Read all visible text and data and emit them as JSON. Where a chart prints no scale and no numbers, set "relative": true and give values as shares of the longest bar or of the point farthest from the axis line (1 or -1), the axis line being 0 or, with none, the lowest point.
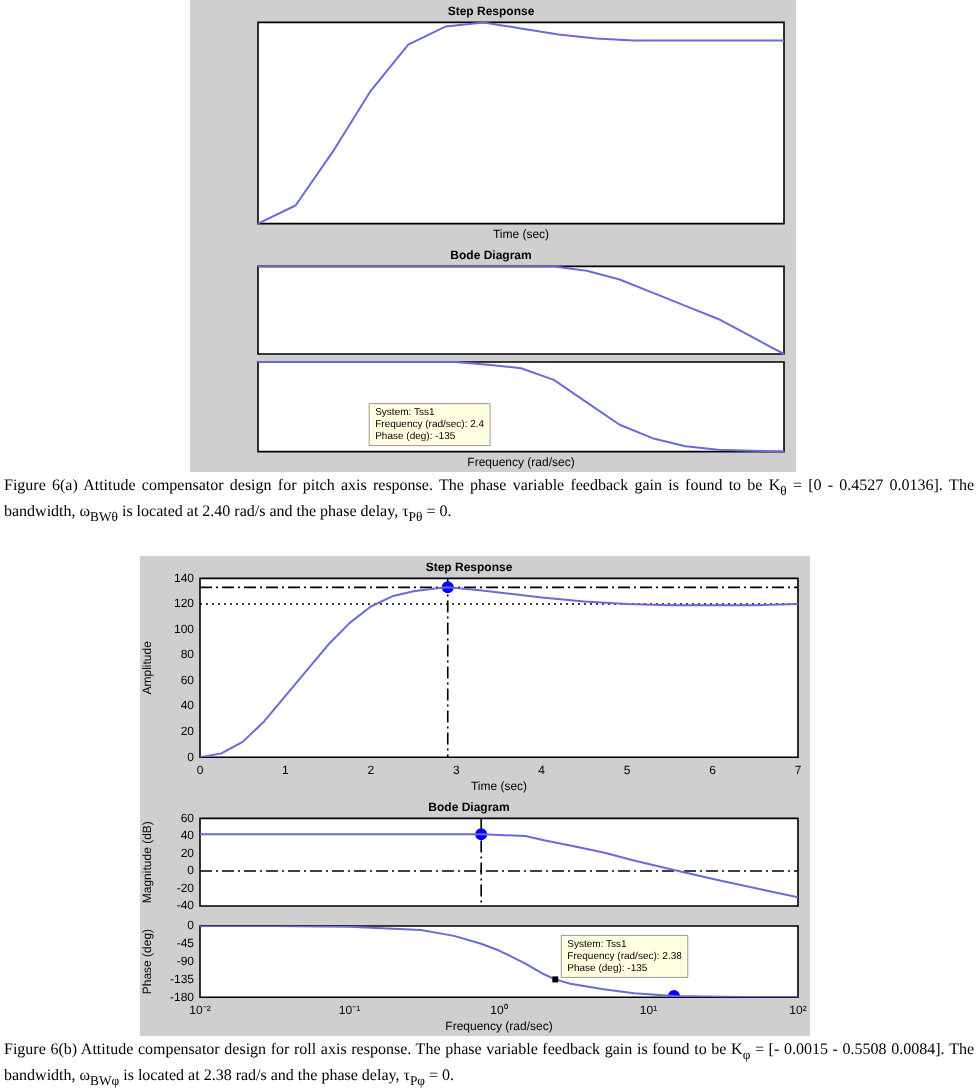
{
  "chart_data": [
    {
      "type": "line",
      "title": "Step Response",
      "xlabel": "Time (sec)",
      "relative": true,
      "tick_labels": false,
      "categories": [
        null,
        null,
        null,
        null,
        null,
        null,
        null,
        null,
        null,
        null,
        null,
        null,
        null,
        null,
        null
      ],
      "series": [
        {
          "color": "#6a6ad8",
          "values": [
            0,
            0.09,
            0.36,
            0.66,
            0.89,
            0.98,
            1,
            0.97,
            0.94,
            0.92,
            0.91,
            0.91,
            0.91,
            0.91,
            0.91
          ]
        }
      ]
    },
    {
      "type": "line",
      "title": "Bode Diagram",
      "relative": true,
      "tick_labels": false,
      "categories": [
        null,
        null,
        null,
        null,
        null,
        null,
        null,
        null,
        null,
        null,
        null,
        null,
        null,
        null,
        null,
        null,
        null
      ],
      "series": [
        {
          "color": "#6a6ad8",
          "values": [
            1,
            1,
            1,
            1,
            1,
            1,
            1,
            1,
            1,
            1,
            0.95,
            0.85,
            0.7,
            0.55,
            0.4,
            0.2,
            0
          ]
        }
      ]
    },
    {
      "type": "line",
      "xlabel": "Frequency (rad/sec)",
      "relative": true,
      "tick_labels": false,
      "categories": [
        null,
        null,
        null,
        null,
        null,
        null,
        null,
        null,
        null,
        null,
        null,
        null,
        null,
        null,
        null,
        null,
        null
      ],
      "series": [
        {
          "color": "#6a6ad8",
          "values": [
            1,
            1,
            1,
            1,
            1,
            1,
            1,
            0.97,
            0.93,
            0.8,
            0.55,
            0.3,
            0.15,
            0.06,
            0.02,
            0.01,
            0
          ]
        }
      ],
      "annotations": [
        "Figure 6(a) Attitude compensator design for pitch axis response. The phase variable feedback gain is found to be K$_{θ}$ = [0  - 0.4527  0.0136]. The bandwidth, ω$_{BWθ}$ is located at 2.40 rad/s and the phase delay, τ$_{Pθ}$ = 0.",
        "System: Tss1\nFrequency (rad/sec): 2.4\nPhase (deg): -135"
      ]
    },
    {
      "type": "line",
      "title": "Step Response",
      "xlabel": "Time (sec)",
      "ylabel": "Amplitude",
      "x": [
        0,
        0.25,
        0.5,
        0.75,
        1,
        1.25,
        1.5,
        1.75,
        2,
        2.25,
        2.5,
        2.75,
        2.9,
        3.25,
        3.5,
        4,
        4.5,
        5,
        5.5,
        6,
        6.5,
        7
      ],
      "xlim": [
        0,
        7
      ],
      "xticks": [
        0,
        1,
        2,
        3,
        4,
        5,
        6,
        7
      ],
      "ylim": [
        0,
        140
      ],
      "yticks": [
        0,
        20,
        40,
        60,
        80,
        100,
        120,
        140
      ],
      "series": [
        {
          "color": "#6a6ad8",
          "values": [
            0,
            3,
            12,
            28,
            48,
            68,
            88,
            105,
            118,
            126,
            130,
            132,
            133,
            131,
            129,
            125,
            122,
            120,
            119,
            119,
            119,
            120
          ]
        },
        {
          "type": "scatter",
          "color": "#0000ff",
          "x": [
            2.9
          ],
          "values": [
            133
          ]
        }
      ],
      "ref_lines": [
        {
          "axis": "y",
          "value": 133,
          "line_style": "dashed",
          "color": "#000000"
        },
        {
          "axis": "y",
          "value": 120,
          "line_style": "dotted",
          "color": "#000000"
        },
        {
          "axis": "x",
          "value": 2.9,
          "line_style": "dashed",
          "color": "#000000"
        }
      ]
    },
    {
      "type": "line",
      "title": "Bode Diagram",
      "ylabel": "Magnitude (dB)",
      "log": "x",
      "tick_labels": "y",
      "x": [
        0.01,
        0.03,
        0.1,
        0.3,
        0.5,
        0.76,
        1,
        1.5,
        2,
        3,
        5,
        8,
        14.8,
        30,
        60,
        100
      ],
      "xlim": [
        0.01,
        100
      ],
      "xticks": [
        {
          "value": 0.01,
          "label": null
        },
        {
          "value": 0.1,
          "label": null
        },
        {
          "value": 1,
          "label": null
        },
        {
          "value": 10,
          "label": null
        },
        {
          "value": 100,
          "label": null
        }
      ],
      "ylim": [
        -40,
        60
      ],
      "yticks": [
        -40,
        -20,
        0,
        20,
        40,
        60
      ],
      "series": [
        {
          "color": "#6a6ad8",
          "values": [
            42,
            42,
            42,
            42,
            42,
            42,
            41,
            40,
            35,
            29,
            21,
            12,
            1,
            -11,
            -22,
            -30
          ]
        },
        {
          "type": "scatter",
          "color": "#0000ff",
          "x": [
            0.76
          ],
          "values": [
            42
          ]
        }
      ],
      "ref_lines": [
        {
          "axis": "y",
          "value": 0,
          "line_style": "dashed",
          "color": "#000000"
        },
        {
          "axis": "x",
          "value": 0.76,
          "line_style": "dashed",
          "color": "#000000"
        }
      ]
    },
    {
      "type": "line",
      "xlabel": "Frequency (rad/sec)",
      "ylabel": "Phase (deg)",
      "log": "x",
      "xlim": [
        0.01,
        100
      ],
      "xticks": [
        {
          "value": 0.01,
          "label": "10⁻²"
        },
        {
          "value": 0.1,
          "label": "10⁻¹"
        },
        {
          "value": 1,
          "label": "10⁰"
        },
        {
          "value": 10,
          "label": "10¹"
        },
        {
          "value": 100,
          "label": "10²"
        }
      ],
      "ylim": [
        -180,
        0
      ],
      "yticks": [
        -180,
        -135,
        -90,
        -45,
        0
      ],
      "series": [
        {
          "color": "#6a6ad8",
          "x": [
            0.01,
            0.03,
            0.1,
            0.3,
            0.5,
            0.76,
            1,
            1.5,
            2,
            2.38,
            3,
            5,
            8,
            14.8,
            30,
            60,
            100
          ],
          "values": [
            0,
            0,
            -2,
            -10,
            -25,
            -45,
            -62,
            -95,
            -122,
            -135,
            -146,
            -160,
            -170,
            -177,
            -179,
            -180,
            -180
          ]
        },
        {
          "type": "scatter",
          "color": "#0000ff",
          "x": [
            14.8
          ],
          "values": [
            -177
          ]
        }
      ],
      "annotations": [
        "Figure 6(b) Attitude compensator design for roll axis response. The phase variable feedback gain is found to be K$_{φ}$ = [- 0.0015  - 0.5508  0.0084]. The bandwidth, ω$_{BWφ}$ is located at 2.38 rad/s and the phase delay, τ$_{Pφ}$ = 0.",
        {
          "text": "System: Tss1\nFrequency (rad/sec): 2.38\nPhase (deg): -135",
          "x": 2.38,
          "y": -135
        }
      ]
    }
  ]
}
